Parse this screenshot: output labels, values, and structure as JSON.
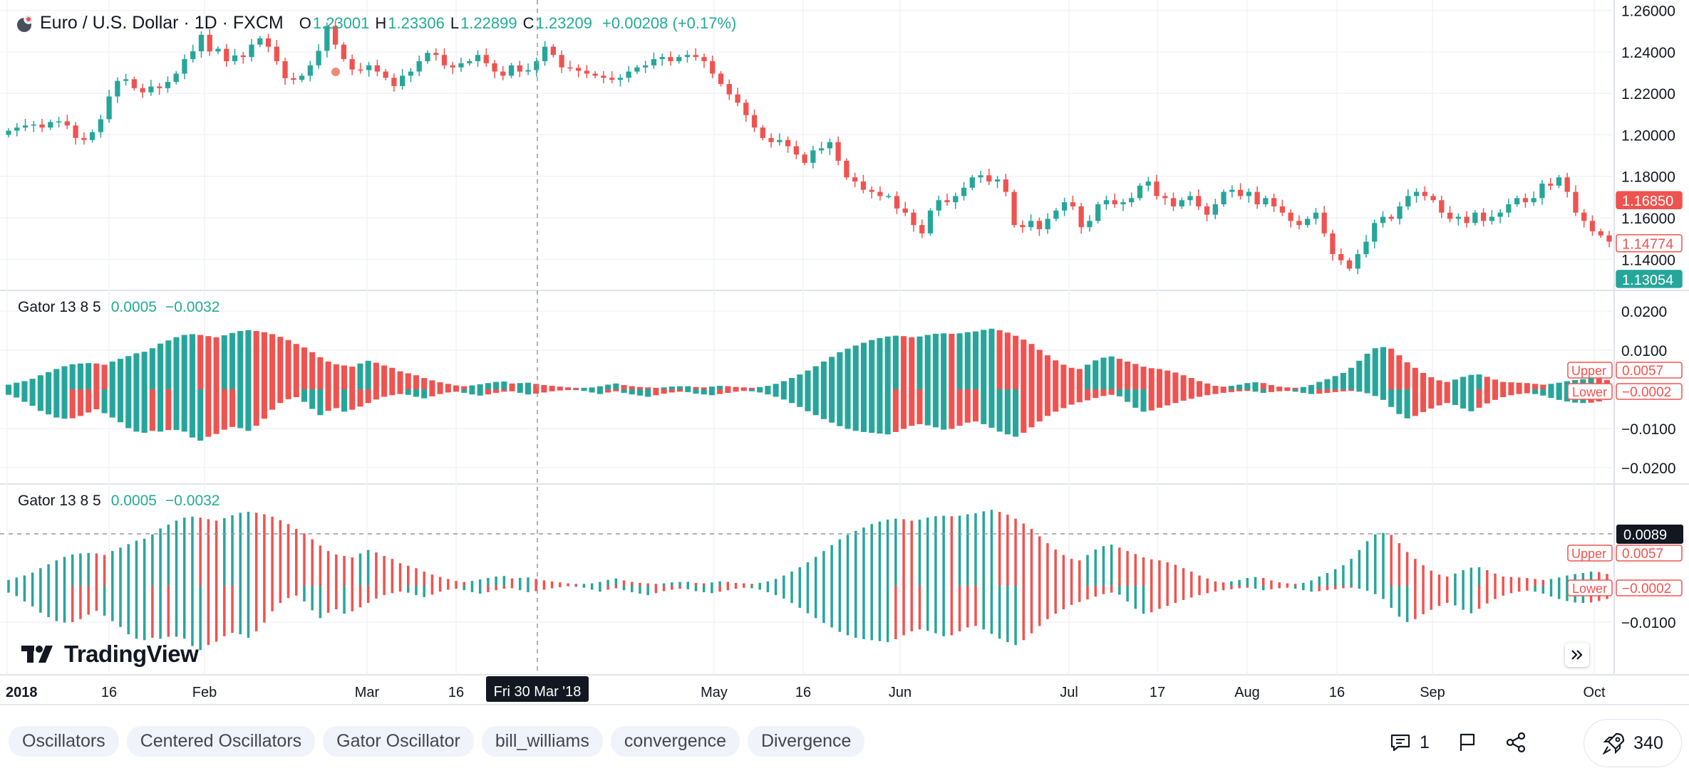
{
  "header": {
    "title": "Euro / U.S. Dollar · 1D · FXCM",
    "ohlc": [
      {
        "key": "O",
        "value": "1.23001"
      },
      {
        "key": "H",
        "value": "1.23306"
      },
      {
        "key": "L",
        "value": "1.22899"
      },
      {
        "key": "C",
        "value": "1.23209"
      }
    ],
    "change": "+0.00208 (+0.17%)"
  },
  "indicator_pane_1": {
    "title": "Gator 13 8 5",
    "value_upper": "0.0005",
    "value_lower": "−0.0032"
  },
  "indicator_pane_2": {
    "title": "Gator 13 8 5",
    "value_upper": "0.0005",
    "value_lower": "−0.0032"
  },
  "crosshair": {
    "date_label": "Fri 30 Mar '18",
    "value_label": "0.0089"
  },
  "colors": {
    "up": "#26a69a",
    "down": "#ef5350",
    "grid": "#f0f3fa",
    "text": "#131722",
    "dark": "#131722"
  },
  "chart_data": [
    {
      "type": "candlestick",
      "title": "Euro / U.S. Dollar · 1D · FXCM",
      "ylim": [
        1.125,
        1.265
      ],
      "y_ticks": [
        "1.26000",
        "1.24000",
        "1.22000",
        "1.20000",
        "1.18000",
        "1.16000",
        "1.14000"
      ],
      "x_ticks": [
        "2018",
        "16",
        "Feb",
        "Mar",
        "16",
        "May",
        "16",
        "Jun",
        "Jul",
        "17",
        "Aug",
        "16",
        "Sep",
        "Oct"
      ],
      "close": [
        1.202,
        1.2035,
        1.2045,
        1.205,
        1.2035,
        1.2062,
        1.2065,
        1.2045,
        1.1985,
        1.1975,
        1.2013,
        1.2075,
        1.2185,
        1.226,
        1.2268,
        1.2225,
        1.2205,
        1.2233,
        1.2225,
        1.2255,
        1.2295,
        1.2365,
        1.2403,
        1.2482,
        1.2402,
        1.2415,
        1.2355,
        1.2383,
        1.2375,
        1.2435,
        1.2465,
        1.2425,
        1.2355,
        1.2273,
        1.2265,
        1.2285,
        1.2335,
        1.2405,
        1.2525,
        1.2435,
        1.2365,
        1.2315,
        1.2312,
        1.2335,
        1.2305,
        1.2275,
        1.2235,
        1.2285,
        1.2305,
        1.2355,
        1.2395,
        1.2385,
        1.2335,
        1.2325,
        1.2345,
        1.2355,
        1.2385,
        1.2345,
        1.2305,
        1.2285,
        1.2335,
        1.2305,
        1.2312,
        1.2355,
        1.2425,
        1.2385,
        1.2325,
        1.2323,
        1.2309,
        1.2295,
        1.2285,
        1.2275,
        1.2265,
        1.2275,
        1.2305,
        1.2325,
        1.2335,
        1.2365,
        1.2375,
        1.2355,
        1.2375,
        1.2385,
        1.2375,
        1.2355,
        1.2295,
        1.2245,
        1.2195,
        1.2155,
        1.2095,
        1.2035,
        1.1985,
        1.1965,
        1.1975,
        1.1945,
        1.1905,
        1.1865,
        1.1925,
        1.1935,
        1.1965,
        1.1875,
        1.1795,
        1.1775,
        1.1735,
        1.1725,
        1.1705,
        1.1705,
        1.1645,
        1.1625,
        1.1565,
        1.1525,
        1.1635,
        1.1685,
        1.1675,
        1.1705,
        1.1745,
        1.1795,
        1.1805,
        1.1775,
        1.1785,
        1.1725,
        1.1565,
        1.1555,
        1.1585,
        1.1545,
        1.1595,
        1.1635,
        1.1675,
        1.1655,
        1.1555,
        1.1585,
        1.1665,
        1.1685,
        1.1665,
        1.1675,
        1.1695,
        1.1755,
        1.1775,
        1.1705,
        1.1695,
        1.1655,
        1.1685,
        1.1705,
        1.1655,
        1.1615,
        1.1665,
        1.1725,
        1.1735,
        1.1705,
        1.1725,
        1.1665,
        1.1695,
        1.1655,
        1.1625,
        1.1585,
        1.1565,
        1.1595,
        1.1625,
        1.1525,
        1.1425,
        1.1395,
        1.1355,
        1.1425,
        1.1485,
        1.1575,
        1.1605,
        1.1595,
        1.1655,
        1.1705,
        1.1725,
        1.1705,
        1.1685,
        1.1625,
        1.1595,
        1.1605,
        1.1575,
        1.1625,
        1.1585,
        1.1605,
        1.1625,
        1.1665,
        1.1695,
        1.1675,
        1.1695,
        1.1765,
        1.1755,
        1.1795,
        1.1725,
        1.1625,
        1.1585,
        1.1535,
        1.1515,
        1.1485
      ],
      "last_price_labels": [
        "1.16850",
        "1.14774",
        "1.13054"
      ]
    },
    {
      "type": "bar",
      "title": "Gator 13 8 5",
      "ylim": [
        -0.025,
        0.025
      ],
      "y_ticks": [
        "0.0200",
        "0.0100",
        "−0.0100",
        "−0.0200"
      ],
      "upper": [
        0.0012,
        0.0017,
        0.0021,
        0.0027,
        0.0036,
        0.0044,
        0.0052,
        0.0059,
        0.0064,
        0.0066,
        0.0067,
        0.0066,
        0.0063,
        0.0071,
        0.0078,
        0.0085,
        0.0092,
        0.0096,
        0.0105,
        0.0117,
        0.0125,
        0.0133,
        0.0139,
        0.0141,
        0.0139,
        0.0136,
        0.0133,
        0.0138,
        0.0144,
        0.0149,
        0.0151,
        0.0149,
        0.0146,
        0.0141,
        0.0134,
        0.0126,
        0.0116,
        0.0107,
        0.0095,
        0.0082,
        0.0071,
        0.0064,
        0.0061,
        0.0058,
        0.0066,
        0.0073,
        0.0068,
        0.0061,
        0.0055,
        0.0046,
        0.0041,
        0.0036,
        0.0029,
        0.0023,
        0.0018,
        0.0014,
        0.001,
        0.0008,
        0.001,
        0.0013,
        0.0016,
        0.0019,
        0.002,
        0.0015,
        0.0016,
        0.0017,
        0.0014,
        0.0011,
        0.0009,
        0.0007,
        0.0005,
        0.0004,
        0.0004,
        0.0005,
        0.0008,
        0.0012,
        0.0015,
        0.0011,
        0.0008,
        0.0006,
        0.0005,
        0.0004,
        0.0005,
        0.0007,
        0.0008,
        0.0008,
        0.0006,
        0.0005,
        0.0007,
        0.0009,
        0.0008,
        0.0006,
        0.0005,
        0.0004,
        0.0006,
        0.0009,
        0.0014,
        0.0021,
        0.0029,
        0.0038,
        0.0048,
        0.0059,
        0.0071,
        0.0083,
        0.0095,
        0.0104,
        0.0112,
        0.0119,
        0.0126,
        0.0131,
        0.0135,
        0.0137,
        0.0136,
        0.0133,
        0.0135,
        0.0139,
        0.0142,
        0.0143,
        0.0142,
        0.0143,
        0.0146,
        0.0148,
        0.0152,
        0.0155,
        0.0151,
        0.0145,
        0.0137,
        0.0127,
        0.0116,
        0.0101,
        0.0087,
        0.0074,
        0.0063,
        0.0055,
        0.0052,
        0.0063,
        0.0074,
        0.0081,
        0.0084,
        0.0078,
        0.0071,
        0.0065,
        0.0058,
        0.0054,
        0.0052,
        0.0048,
        0.0043,
        0.0036,
        0.0029,
        0.0021,
        0.0015,
        0.0009,
        0.0007,
        0.0009,
        0.0012,
        0.0016,
        0.0018,
        0.0016,
        0.0011,
        0.0007,
        0.0005,
        0.0004,
        0.0006,
        0.0011,
        0.0019,
        0.0026,
        0.0034,
        0.0042,
        0.0055,
        0.0073,
        0.0091,
        0.0105,
        0.0108,
        0.0104,
        0.0087,
        0.0069,
        0.0055,
        0.0042,
        0.0031,
        0.0023,
        0.0019,
        0.0025,
        0.0032,
        0.0037,
        0.0038,
        0.0032,
        0.0025,
        0.0019,
        0.0018,
        0.0017,
        0.0016,
        0.0014,
        0.0012,
        0.0014,
        0.0017,
        0.0021,
        0.0024,
        0.0026,
        0.0029,
        0.0028,
        0.0024
      ],
      "lower": [
        -0.0014,
        -0.0021,
        -0.0032,
        -0.0042,
        -0.0055,
        -0.0064,
        -0.0072,
        -0.0075,
        -0.0074,
        -0.0068,
        -0.0059,
        -0.0051,
        -0.0061,
        -0.0072,
        -0.0084,
        -0.0099,
        -0.0108,
        -0.0111,
        -0.0106,
        -0.0108,
        -0.0104,
        -0.0104,
        -0.0108,
        -0.0123,
        -0.0131,
        -0.0121,
        -0.0114,
        -0.0103,
        -0.0096,
        -0.0099,
        -0.0106,
        -0.0093,
        -0.0075,
        -0.0052,
        -0.0035,
        -0.0025,
        -0.002,
        -0.0032,
        -0.005,
        -0.0066,
        -0.0055,
        -0.0048,
        -0.0057,
        -0.0052,
        -0.0044,
        -0.0035,
        -0.0026,
        -0.0019,
        -0.0015,
        -0.0012,
        -0.0014,
        -0.0019,
        -0.0023,
        -0.0018,
        -0.0012,
        -0.0008,
        -0.0006,
        -0.0009,
        -0.0013,
        -0.0016,
        -0.0013,
        -0.0009,
        -0.0006,
        -0.0005,
        -0.0009,
        -0.0013,
        -0.0011,
        -0.0008,
        -0.0005,
        -0.0003,
        -0.0001,
        -0.0002,
        -0.0004,
        -0.0008,
        -0.0012,
        -0.0008,
        -0.0005,
        -0.0009,
        -0.0013,
        -0.0016,
        -0.0019,
        -0.0015,
        -0.0011,
        -0.0008,
        -0.0006,
        -0.0007,
        -0.0011,
        -0.0013,
        -0.0015,
        -0.0012,
        -0.0009,
        -0.0006,
        -0.0004,
        -0.0005,
        -0.0008,
        -0.0013,
        -0.0019,
        -0.0026,
        -0.0035,
        -0.0045,
        -0.0056,
        -0.0066,
        -0.0076,
        -0.0085,
        -0.0094,
        -0.0101,
        -0.0106,
        -0.0109,
        -0.0111,
        -0.0113,
        -0.0115,
        -0.0109,
        -0.0101,
        -0.0093,
        -0.0089,
        -0.0092,
        -0.0097,
        -0.0103,
        -0.0101,
        -0.0093,
        -0.0085,
        -0.0082,
        -0.0089,
        -0.0098,
        -0.0108,
        -0.0115,
        -0.0121,
        -0.0111,
        -0.0097,
        -0.0082,
        -0.0068,
        -0.0057,
        -0.0048,
        -0.0039,
        -0.0033,
        -0.0028,
        -0.0022,
        -0.0017,
        -0.0014,
        -0.0018,
        -0.0032,
        -0.0047,
        -0.0057,
        -0.0054,
        -0.0047,
        -0.0041,
        -0.0035,
        -0.0029,
        -0.0024,
        -0.0019,
        -0.0015,
        -0.0012,
        -0.0009,
        -0.0007,
        -0.0005,
        -0.0004,
        -0.0006,
        -0.0009,
        -0.0007,
        -0.0005,
        -0.0004,
        -0.0006,
        -0.0009,
        -0.0012,
        -0.0011,
        -0.0009,
        -0.0007,
        -0.0005,
        -0.0004,
        -0.0006,
        -0.001,
        -0.0017,
        -0.0027,
        -0.0045,
        -0.0063,
        -0.0074,
        -0.0068,
        -0.0058,
        -0.0049,
        -0.0041,
        -0.0035,
        -0.004,
        -0.0049,
        -0.0056,
        -0.0047,
        -0.0036,
        -0.0027,
        -0.002,
        -0.0015,
        -0.0012,
        -0.001,
        -0.0012,
        -0.0016,
        -0.0022,
        -0.0027,
        -0.0031,
        -0.0034,
        -0.0035,
        -0.0034,
        -0.0031,
        -0.0027
      ]
    },
    {
      "type": "bar",
      "title": "Gator 13 8 5",
      "ylim": [
        -0.0135,
        0.0145
      ],
      "y_ticks": [
        "−0.0100"
      ],
      "note": "same Gator series drawn as thin columns"
    }
  ],
  "axis_labels": {
    "upper_tag": "Upper",
    "upper_val": "0.0057",
    "lower_tag": "Lower",
    "lower_val": "−0.0002"
  },
  "logo": {
    "text": "TradingView"
  },
  "tags": [
    "Oscillators",
    "Centered Oscillators",
    "Gator Oscillator",
    "bill_williams",
    "convergence",
    "Divergence"
  ],
  "actions": {
    "comments": "1",
    "boosts": "340"
  }
}
